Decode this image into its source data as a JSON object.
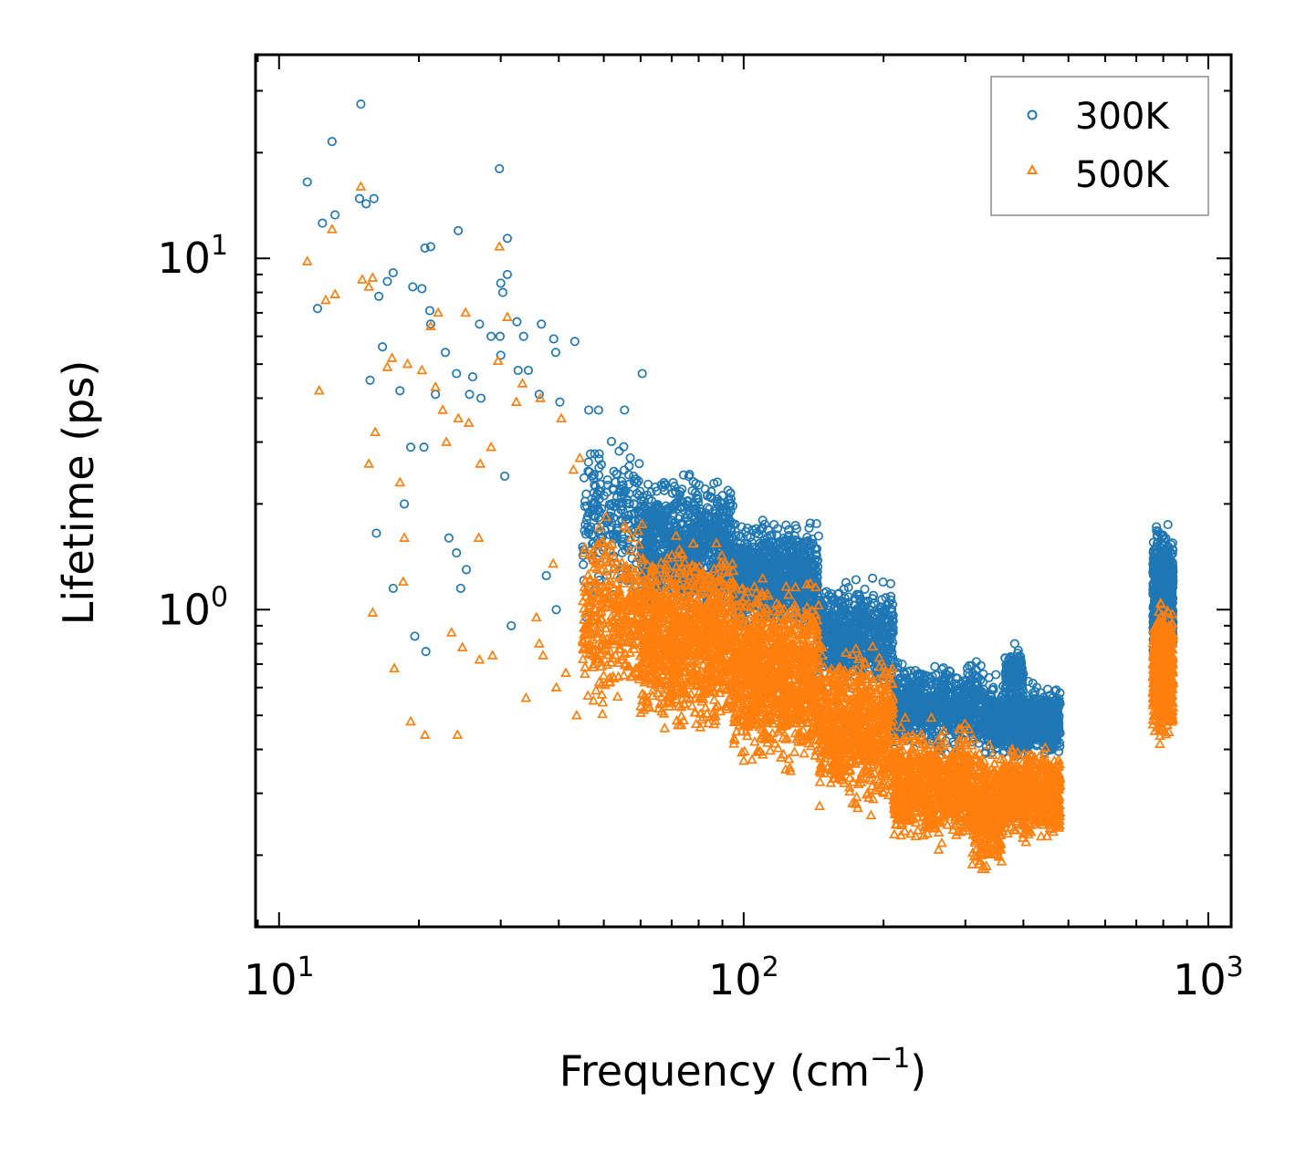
{
  "chart_data": {
    "type": "scatter",
    "title": "",
    "xscale": "log",
    "yscale": "log",
    "xlabel": {
      "text": "Frequency (cm",
      "sup": "−1",
      "suffix": ")"
    },
    "ylabel": "Lifetime (ps)",
    "xlim": [
      8.9,
      1120
    ],
    "ylim": [
      0.125,
      38
    ],
    "xticks": [
      {
        "value": 10,
        "base": "10",
        "exp": "1"
      },
      {
        "value": 100,
        "base": "10",
        "exp": "2"
      },
      {
        "value": 1000,
        "base": "10",
        "exp": "3"
      }
    ],
    "yticks": [
      {
        "value": 1,
        "base": "10",
        "exp": "0"
      },
      {
        "value": 10,
        "base": "10",
        "exp": "1"
      }
    ],
    "legend_position": "top-right",
    "series": [
      {
        "name": "300K",
        "marker": "circle",
        "color": "#1f77b4",
        "outliers": [
          [
            15.0,
            27.5
          ],
          [
            13.0,
            21.5
          ],
          [
            29.8,
            18.0
          ],
          [
            11.5,
            16.5
          ],
          [
            14.9,
            14.8
          ],
          [
            16.0,
            14.8
          ],
          [
            15.4,
            14.3
          ],
          [
            13.2,
            13.3
          ],
          [
            12.4,
            12.6
          ],
          [
            24.3,
            12.0
          ],
          [
            31.0,
            11.4
          ],
          [
            20.6,
            10.7
          ],
          [
            21.2,
            10.8
          ],
          [
            31.0,
            9.0
          ],
          [
            17.6,
            9.1
          ],
          [
            17.1,
            8.6
          ],
          [
            19.4,
            8.3
          ],
          [
            20.3,
            8.2
          ],
          [
            30.0,
            8.5
          ],
          [
            30.3,
            8.0
          ],
          [
            16.4,
            7.8
          ],
          [
            21.1,
            7.1
          ],
          [
            12.1,
            7.2
          ],
          [
            27.0,
            6.5
          ],
          [
            21.2,
            6.5
          ],
          [
            32.5,
            6.6
          ],
          [
            36.7,
            6.5
          ],
          [
            29.9,
            6.0
          ],
          [
            28.6,
            6.0
          ],
          [
            33.6,
            6.0
          ],
          [
            39.0,
            5.9
          ],
          [
            39.4,
            5.4
          ],
          [
            43.3,
            5.8
          ],
          [
            16.7,
            5.6
          ],
          [
            22.8,
            5.4
          ],
          [
            24.1,
            4.7
          ],
          [
            30.0,
            5.3
          ],
          [
            26.1,
            4.6
          ],
          [
            32.7,
            4.8
          ],
          [
            34.4,
            4.8
          ],
          [
            60.5,
            4.7
          ],
          [
            15.7,
            4.5
          ],
          [
            18.2,
            4.2
          ],
          [
            25.7,
            4.1
          ],
          [
            27.2,
            4.0
          ],
          [
            36.3,
            4.1
          ],
          [
            21.7,
            4.1
          ],
          [
            40.2,
            3.9
          ],
          [
            46.4,
            3.7
          ],
          [
            55.4,
            3.7
          ],
          [
            48.7,
            3.7
          ],
          [
            19.2,
            2.9
          ],
          [
            20.5,
            2.9
          ],
          [
            30.6,
            2.4
          ],
          [
            16.2,
            1.65
          ],
          [
            18.6,
            2.0
          ],
          [
            23.2,
            1.6
          ],
          [
            24.1,
            1.45
          ],
          [
            24.6,
            1.15
          ],
          [
            25.3,
            1.3
          ],
          [
            17.6,
            1.15
          ],
          [
            31.6,
            0.9
          ],
          [
            19.6,
            0.84
          ],
          [
            20.7,
            0.76
          ],
          [
            37.6,
            1.25
          ],
          [
            39.5,
            1.0
          ],
          [
            51.0,
            1.05
          ],
          [
            45.9,
            0.95
          ],
          [
            47.1,
            1.1
          ],
          [
            383.0,
            0.8
          ],
          [
            93.0,
            2.05
          ],
          [
            111.0,
            1.75
          ],
          [
            130.0,
            1.7
          ],
          [
            70.5,
            2.3
          ]
        ],
        "bands": [
          {
            "x": [
              45,
              60
            ],
            "y": [
              1.0,
              3.4
            ],
            "n": 220
          },
          {
            "x": [
              60,
              95
            ],
            "y": [
              0.9,
              2.6
            ],
            "n": 900
          },
          {
            "x": [
              95,
              145
            ],
            "y": [
              0.82,
              1.9
            ],
            "n": 900
          },
          {
            "x": [
              145,
              210
            ],
            "y": [
              0.55,
              1.3
            ],
            "n": 700
          },
          {
            "x": [
              210,
              330
            ],
            "y": [
              0.38,
              0.74
            ],
            "n": 800
          },
          {
            "x": [
              330,
              480
            ],
            "y": [
              0.36,
              0.66
            ],
            "n": 800
          },
          {
            "x": [
              365,
              400
            ],
            "y": [
              0.55,
              0.8
            ],
            "n": 120
          },
          {
            "x": [
              760,
              840
            ],
            "y": [
              0.65,
              1.85
            ],
            "n": 650
          }
        ]
      },
      {
        "name": "500K",
        "marker": "triangle",
        "color": "#ff7f0e",
        "outliers": [
          [
            15.0,
            16.0
          ],
          [
            29.8,
            10.8
          ],
          [
            13.0,
            12.1
          ],
          [
            11.5,
            9.8
          ],
          [
            15.1,
            8.7
          ],
          [
            15.9,
            8.8
          ],
          [
            15.6,
            8.3
          ],
          [
            13.2,
            7.9
          ],
          [
            12.6,
            7.6
          ],
          [
            12.2,
            4.2
          ],
          [
            17.1,
            4.9
          ],
          [
            17.5,
            5.2
          ],
          [
            18.9,
            5.0
          ],
          [
            20.3,
            4.8
          ],
          [
            21.2,
            6.4
          ],
          [
            22.0,
            7.0
          ],
          [
            25.2,
            7.0
          ],
          [
            31.0,
            6.8
          ],
          [
            16.1,
            3.2
          ],
          [
            15.6,
            2.6
          ],
          [
            18.2,
            2.3
          ],
          [
            18.6,
            1.6
          ],
          [
            18.5,
            1.2
          ],
          [
            15.9,
            0.98
          ],
          [
            17.7,
            0.68
          ],
          [
            19.2,
            0.48
          ],
          [
            20.6,
            0.44
          ],
          [
            24.2,
            0.44
          ],
          [
            23.5,
            0.86
          ],
          [
            24.8,
            0.78
          ],
          [
            27.0,
            0.72
          ],
          [
            28.8,
            0.74
          ],
          [
            34.0,
            0.56
          ],
          [
            36.3,
            0.8
          ],
          [
            22.9,
            3.0
          ],
          [
            25.6,
            3.4
          ],
          [
            27.1,
            2.6
          ],
          [
            28.6,
            2.9
          ],
          [
            26.9,
            1.6
          ],
          [
            21.7,
            4.3
          ],
          [
            22.5,
            3.7
          ],
          [
            24.3,
            3.5
          ],
          [
            29.6,
            5.1
          ],
          [
            32.4,
            3.9
          ],
          [
            33.4,
            4.4
          ],
          [
            36.5,
            4.0
          ],
          [
            40.5,
            3.5
          ],
          [
            43.0,
            2.5
          ],
          [
            44.4,
            2.7
          ],
          [
            45.5,
            1.5
          ],
          [
            57.3,
            1.6
          ],
          [
            60.5,
            1.75
          ],
          [
            38.9,
            1.35
          ],
          [
            35.8,
            0.95
          ],
          [
            37.0,
            0.74
          ],
          [
            39.5,
            0.6
          ],
          [
            41.4,
            0.66
          ],
          [
            43.7,
            0.5
          ],
          [
            47.5,
            0.55
          ]
        ],
        "bands": [
          {
            "x": [
              45,
              60
            ],
            "y": [
              0.48,
              2.0
            ],
            "n": 350
          },
          {
            "x": [
              60,
              95
            ],
            "y": [
              0.4,
              1.75
            ],
            "n": 1100
          },
          {
            "x": [
              95,
              145
            ],
            "y": [
              0.32,
              1.35
            ],
            "n": 1100
          },
          {
            "x": [
              145,
              210
            ],
            "y": [
              0.25,
              0.85
            ],
            "n": 800
          },
          {
            "x": [
              210,
              310
            ],
            "y": [
              0.2,
              0.5
            ],
            "n": 800
          },
          {
            "x": [
              310,
              360
            ],
            "y": [
              0.165,
              0.45
            ],
            "n": 350
          },
          {
            "x": [
              360,
              480
            ],
            "y": [
              0.21,
              0.42
            ],
            "n": 700
          },
          {
            "x": [
              760,
              840
            ],
            "y": [
              0.4,
              1.1
            ],
            "n": 650
          }
        ]
      }
    ]
  }
}
